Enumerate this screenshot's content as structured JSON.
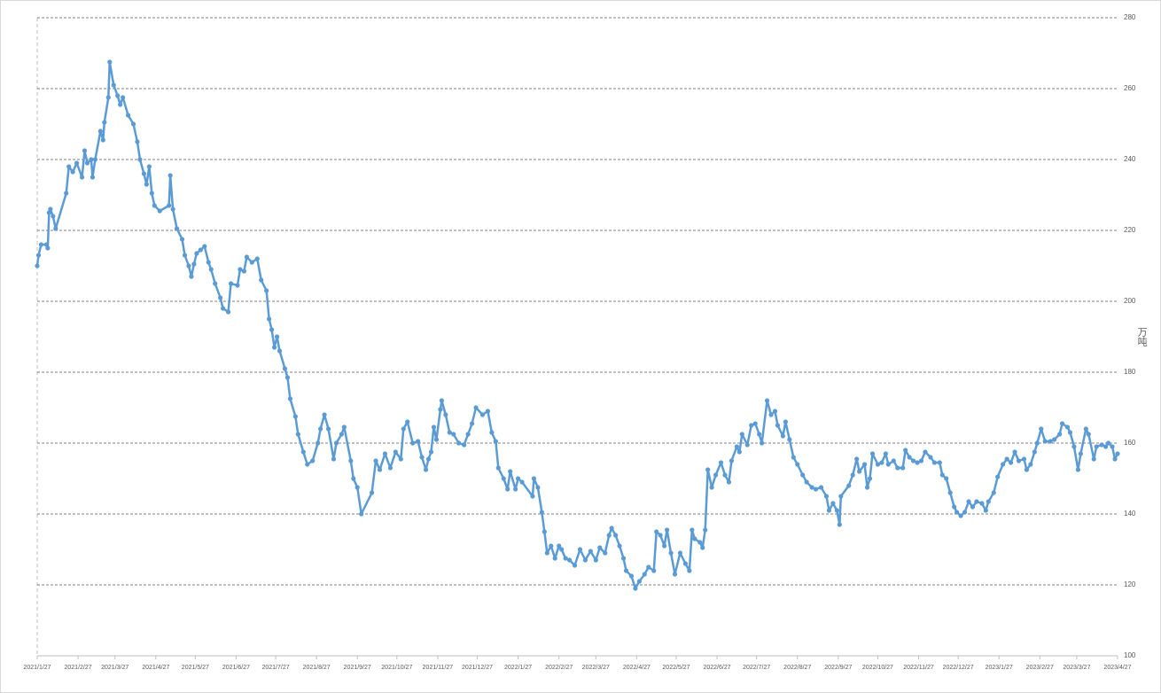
{
  "chart_data": {
    "type": "line",
    "y_label": "万吨",
    "color": "#5b9bd5",
    "grid": true,
    "xlim": [
      "2021/1/27",
      "2023/4/27"
    ],
    "xticks": [
      "2021/1/27",
      "2021/2/27",
      "2021/3/27",
      "2021/4/27",
      "2021/5/27",
      "2021/6/27",
      "2021/7/27",
      "2021/8/27",
      "2021/9/27",
      "2021/10/27",
      "2021/11/27",
      "2021/12/27",
      "2022/1/27",
      "2022/2/27",
      "2022/3/27",
      "2022/4/27",
      "2022/5/27",
      "2022/6/27",
      "2022/7/27",
      "2022/8/27",
      "2022/9/27",
      "2022/10/27",
      "2022/11/27",
      "2022/12/27",
      "2023/1/27",
      "2023/2/27",
      "2023/3/27",
      "2023/4/27"
    ],
    "ylim": [
      100,
      280
    ],
    "yticks": [
      100,
      120,
      140,
      160,
      180,
      200,
      220,
      240,
      260,
      280
    ],
    "x": [
      "2021/1/27",
      "2021/1/28",
      "2021/1/30",
      "2021/2/3",
      "2021/2/4",
      "2021/2/5",
      "2021/2/6",
      "2021/2/8",
      "2021/2/10",
      "2021/2/18",
      "2021/2/20",
      "2021/2/23",
      "2021/2/26",
      "2021/3/2",
      "2021/3/4",
      "2021/3/6",
      "2021/3/9",
      "2021/3/10",
      "2021/3/12",
      "2021/3/16",
      "2021/3/18",
      "2021/3/19",
      "2021/3/22",
      "2021/3/23",
      "2021/3/26",
      "2021/3/29",
      "2021/3/31",
      "2021/4/2",
      "2021/4/6",
      "2021/4/10",
      "2021/4/13",
      "2021/4/15",
      "2021/4/18",
      "2021/4/20",
      "2021/4/22",
      "2021/4/24",
      "2021/4/26",
      "2021/4/30",
      "2021/5/7",
      "2021/5/8",
      "2021/5/10",
      "2021/5/13",
      "2021/5/17",
      "2021/5/19",
      "2021/5/22",
      "2021/5/24",
      "2021/5/26",
      "2021/5/28",
      "2021/5/31",
      "2021/6/3",
      "2021/6/6",
      "2021/6/8",
      "2021/6/11",
      "2021/6/15",
      "2021/6/17",
      "2021/6/21",
      "2021/6/23",
      "2021/6/28",
      "2021/6/30",
      "2021/7/3",
      "2021/7/5",
      "2021/7/9",
      "2021/7/13",
      "2021/7/16",
      "2021/7/20",
      "2021/7/22",
      "2021/7/24",
      "2021/7/26",
      "2021/7/28",
      "2021/7/30",
      "2021/8/3",
      "2021/8/5",
      "2021/8/7",
      "2021/8/11",
      "2021/8/13",
      "2021/8/17",
      "2021/8/20",
      "2021/8/24",
      "2021/8/28",
      "2021/8/30",
      "2021/9/2",
      "2021/9/5",
      "2021/9/9",
      "2021/9/11",
      "2021/9/15",
      "2021/9/17",
      "2021/9/22",
      "2021/9/24",
      "2021/9/27",
      "2021/9/30",
      "2021/10/8",
      "2021/10/11",
      "2021/10/14",
      "2021/10/18",
      "2021/10/22",
      "2021/10/26",
      "2021/10/30",
      "2021/11/1",
      "2021/11/4",
      "2021/11/8",
      "2021/11/12",
      "2021/11/15",
      "2021/11/18",
      "2021/11/20",
      "2021/11/22",
      "2021/11/24",
      "2021/11/26",
      "2021/11/29",
      "2021/11/30",
      "2021/12/3",
      "2021/12/6",
      "2021/12/9",
      "2021/12/13",
      "2021/12/17",
      "2021/12/20",
      "2021/12/23",
      "2021/12/26",
      "2021/12/31",
      "2022/1/4",
      "2022/1/7",
      "2022/1/10",
      "2022/1/12",
      "2022/1/16",
      "2022/1/19",
      "2022/1/21",
      "2022/1/25",
      "2022/1/27",
      "2022/1/30",
      "2022/2/7",
      "2022/2/8",
      "2022/2/11",
      "2022/2/14",
      "2022/2/16",
      "2022/2/18",
      "2022/2/21",
      "2022/2/24",
      "2022/2/27",
      "2022/3/1",
      "2022/3/4",
      "2022/3/7",
      "2022/3/11",
      "2022/3/15",
      "2022/3/19",
      "2022/3/23",
      "2022/3/27",
      "2022/3/30",
      "2022/4/3",
      "2022/4/6",
      "2022/4/8",
      "2022/4/11",
      "2022/4/14",
      "2022/4/17",
      "2022/4/19",
      "2022/4/23",
      "2022/4/26",
      "2022/4/29",
      "2022/5/3",
      "2022/5/6",
      "2022/5/10",
      "2022/5/12",
      "2022/5/15",
      "2022/5/18",
      "2022/5/20",
      "2022/5/23",
      "2022/5/26",
      "2022/5/30",
      "2022/6/3",
      "2022/6/6",
      "2022/6/8",
      "2022/6/10",
      "2022/6/14",
      "2022/6/16",
      "2022/6/18",
      "2022/6/20",
      "2022/6/23",
      "2022/6/26",
      "2022/6/30",
      "2022/7/3",
      "2022/7/6",
      "2022/7/8",
      "2022/7/12",
      "2022/7/14",
      "2022/7/16",
      "2022/7/20",
      "2022/7/23",
      "2022/7/26",
      "2022/7/29",
      "2022/7/31",
      "2022/8/4",
      "2022/8/7",
      "2022/8/10",
      "2022/8/12",
      "2022/8/16",
      "2022/8/18",
      "2022/8/21",
      "2022/8/24",
      "2022/8/27",
      "2022/8/31",
      "2022/9/3",
      "2022/9/7",
      "2022/9/10",
      "2022/9/14",
      "2022/9/18",
      "2022/9/20",
      "2022/9/23",
      "2022/9/26",
      "2022/9/28",
      "2022/9/29",
      "2022/10/5",
      "2022/10/8",
      "2022/10/11",
      "2022/10/13",
      "2022/10/17",
      "2022/10/19",
      "2022/10/21",
      "2022/10/23",
      "2022/10/27",
      "2022/10/30",
      "2022/11/2",
      "2022/11/4",
      "2022/11/8",
      "2022/11/11",
      "2022/11/15",
      "2022/11/17",
      "2022/11/20",
      "2022/11/23",
      "2022/11/26",
      "2022/11/29",
      "2022/12/2",
      "2022/12/6",
      "2022/12/9",
      "2022/12/13",
      "2022/12/15",
      "2022/12/18",
      "2022/12/21",
      "2022/12/24",
      "2022/12/26",
      "2022/12/29",
      "2023/1/1",
      "2023/1/4",
      "2023/1/7",
      "2023/1/10",
      "2023/1/14",
      "2023/1/17",
      "2023/1/19",
      "2023/1/23",
      "2023/1/26",
      "2023/1/30",
      "2023/2/2",
      "2023/2/5",
      "2023/2/8",
      "2023/2/11",
      "2023/2/15",
      "2023/2/17",
      "2023/2/20",
      "2023/2/23",
      "2023/2/25",
      "2023/2/28",
      "2023/3/3",
      "2023/3/7",
      "2023/3/10",
      "2023/3/14",
      "2023/3/16",
      "2023/3/20",
      "2023/3/22",
      "2023/3/25",
      "2023/3/28",
      "2023/3/30",
      "2023/4/3",
      "2023/4/5",
      "2023/4/9",
      "2023/4/11",
      "2023/4/15",
      "2023/4/18",
      "2023/4/20",
      "2023/4/23",
      "2023/4/25",
      "2023/4/27"
    ],
    "values": [
      210,
      213,
      216,
      216,
      215,
      225,
      226,
      224,
      220.5,
      230.5,
      238,
      236.5,
      239,
      235,
      242.5,
      239,
      240,
      235,
      240,
      248,
      245.5,
      250.5,
      257.5,
      267.5,
      261,
      258,
      255.5,
      257.5,
      252.5,
      250,
      245,
      240,
      236,
      233,
      238,
      230.5,
      227,
      225.5,
      227,
      235.5,
      226,
      220.5,
      217.5,
      213,
      210,
      207,
      210.5,
      213.5,
      214.5,
      215.5,
      211,
      209,
      205,
      201,
      198,
      197,
      205,
      204.5,
      209,
      208.5,
      212.5,
      211,
      212,
      206,
      203,
      195,
      192,
      187,
      190,
      186,
      181,
      178.5,
      172.5,
      167.5,
      162.5,
      157.5,
      154,
      155,
      160,
      164,
      168,
      164,
      155.5,
      160,
      162.5,
      164.5,
      155,
      150,
      147.5,
      140,
      146,
      155,
      152.5,
      157,
      153,
      157.5,
      155.5,
      164,
      166,
      160,
      160.5,
      156,
      152.5,
      155.5,
      157.5,
      164.5,
      161,
      169.5,
      172,
      168,
      163,
      162.5,
      160,
      159.5,
      162.5,
      165.5,
      170,
      168,
      169,
      163,
      160.5,
      153,
      150,
      147,
      152,
      147,
      150,
      149,
      145,
      150,
      147.5,
      140.5,
      135,
      129,
      131,
      127.5,
      131,
      130,
      127.5,
      127,
      125.5,
      130,
      127,
      129.5,
      127,
      130.5,
      129,
      134,
      136,
      134,
      131,
      127.5,
      124,
      122.5,
      119,
      121,
      123,
      125,
      124,
      135,
      134,
      131,
      135.5,
      129,
      123,
      129,
      126,
      124,
      135.5,
      133,
      132,
      130.5,
      135.5,
      152.5,
      147.5,
      151,
      154.5,
      151,
      149,
      155,
      159,
      157.5,
      162.5,
      159.5,
      165,
      165.5,
      162.5,
      160,
      172,
      168,
      169,
      165,
      162,
      166,
      161,
      156,
      154,
      151,
      149,
      147.5,
      147,
      147.5,
      145,
      141,
      143,
      141,
      137,
      145,
      148,
      151,
      155.5,
      152,
      154,
      147.5,
      150,
      157,
      154,
      154.5,
      157,
      154,
      155,
      153,
      153,
      158,
      156,
      155,
      154.5,
      155,
      157.5,
      156,
      154.5,
      154.5,
      151,
      150,
      146,
      142,
      140.5,
      139.5,
      140.5,
      143.5,
      142,
      143.5,
      143,
      141,
      143.5,
      146,
      150.5,
      154,
      155.5,
      154.5,
      157.5,
      155,
      155.5,
      152.5,
      154,
      157.5,
      160,
      164,
      160.5,
      160.5,
      161,
      162.5,
      165.5,
      164.5,
      163,
      159,
      152.5,
      157,
      164,
      162.5,
      155.5,
      159,
      159.5,
      159,
      160,
      159,
      155.5,
      157
    ]
  }
}
